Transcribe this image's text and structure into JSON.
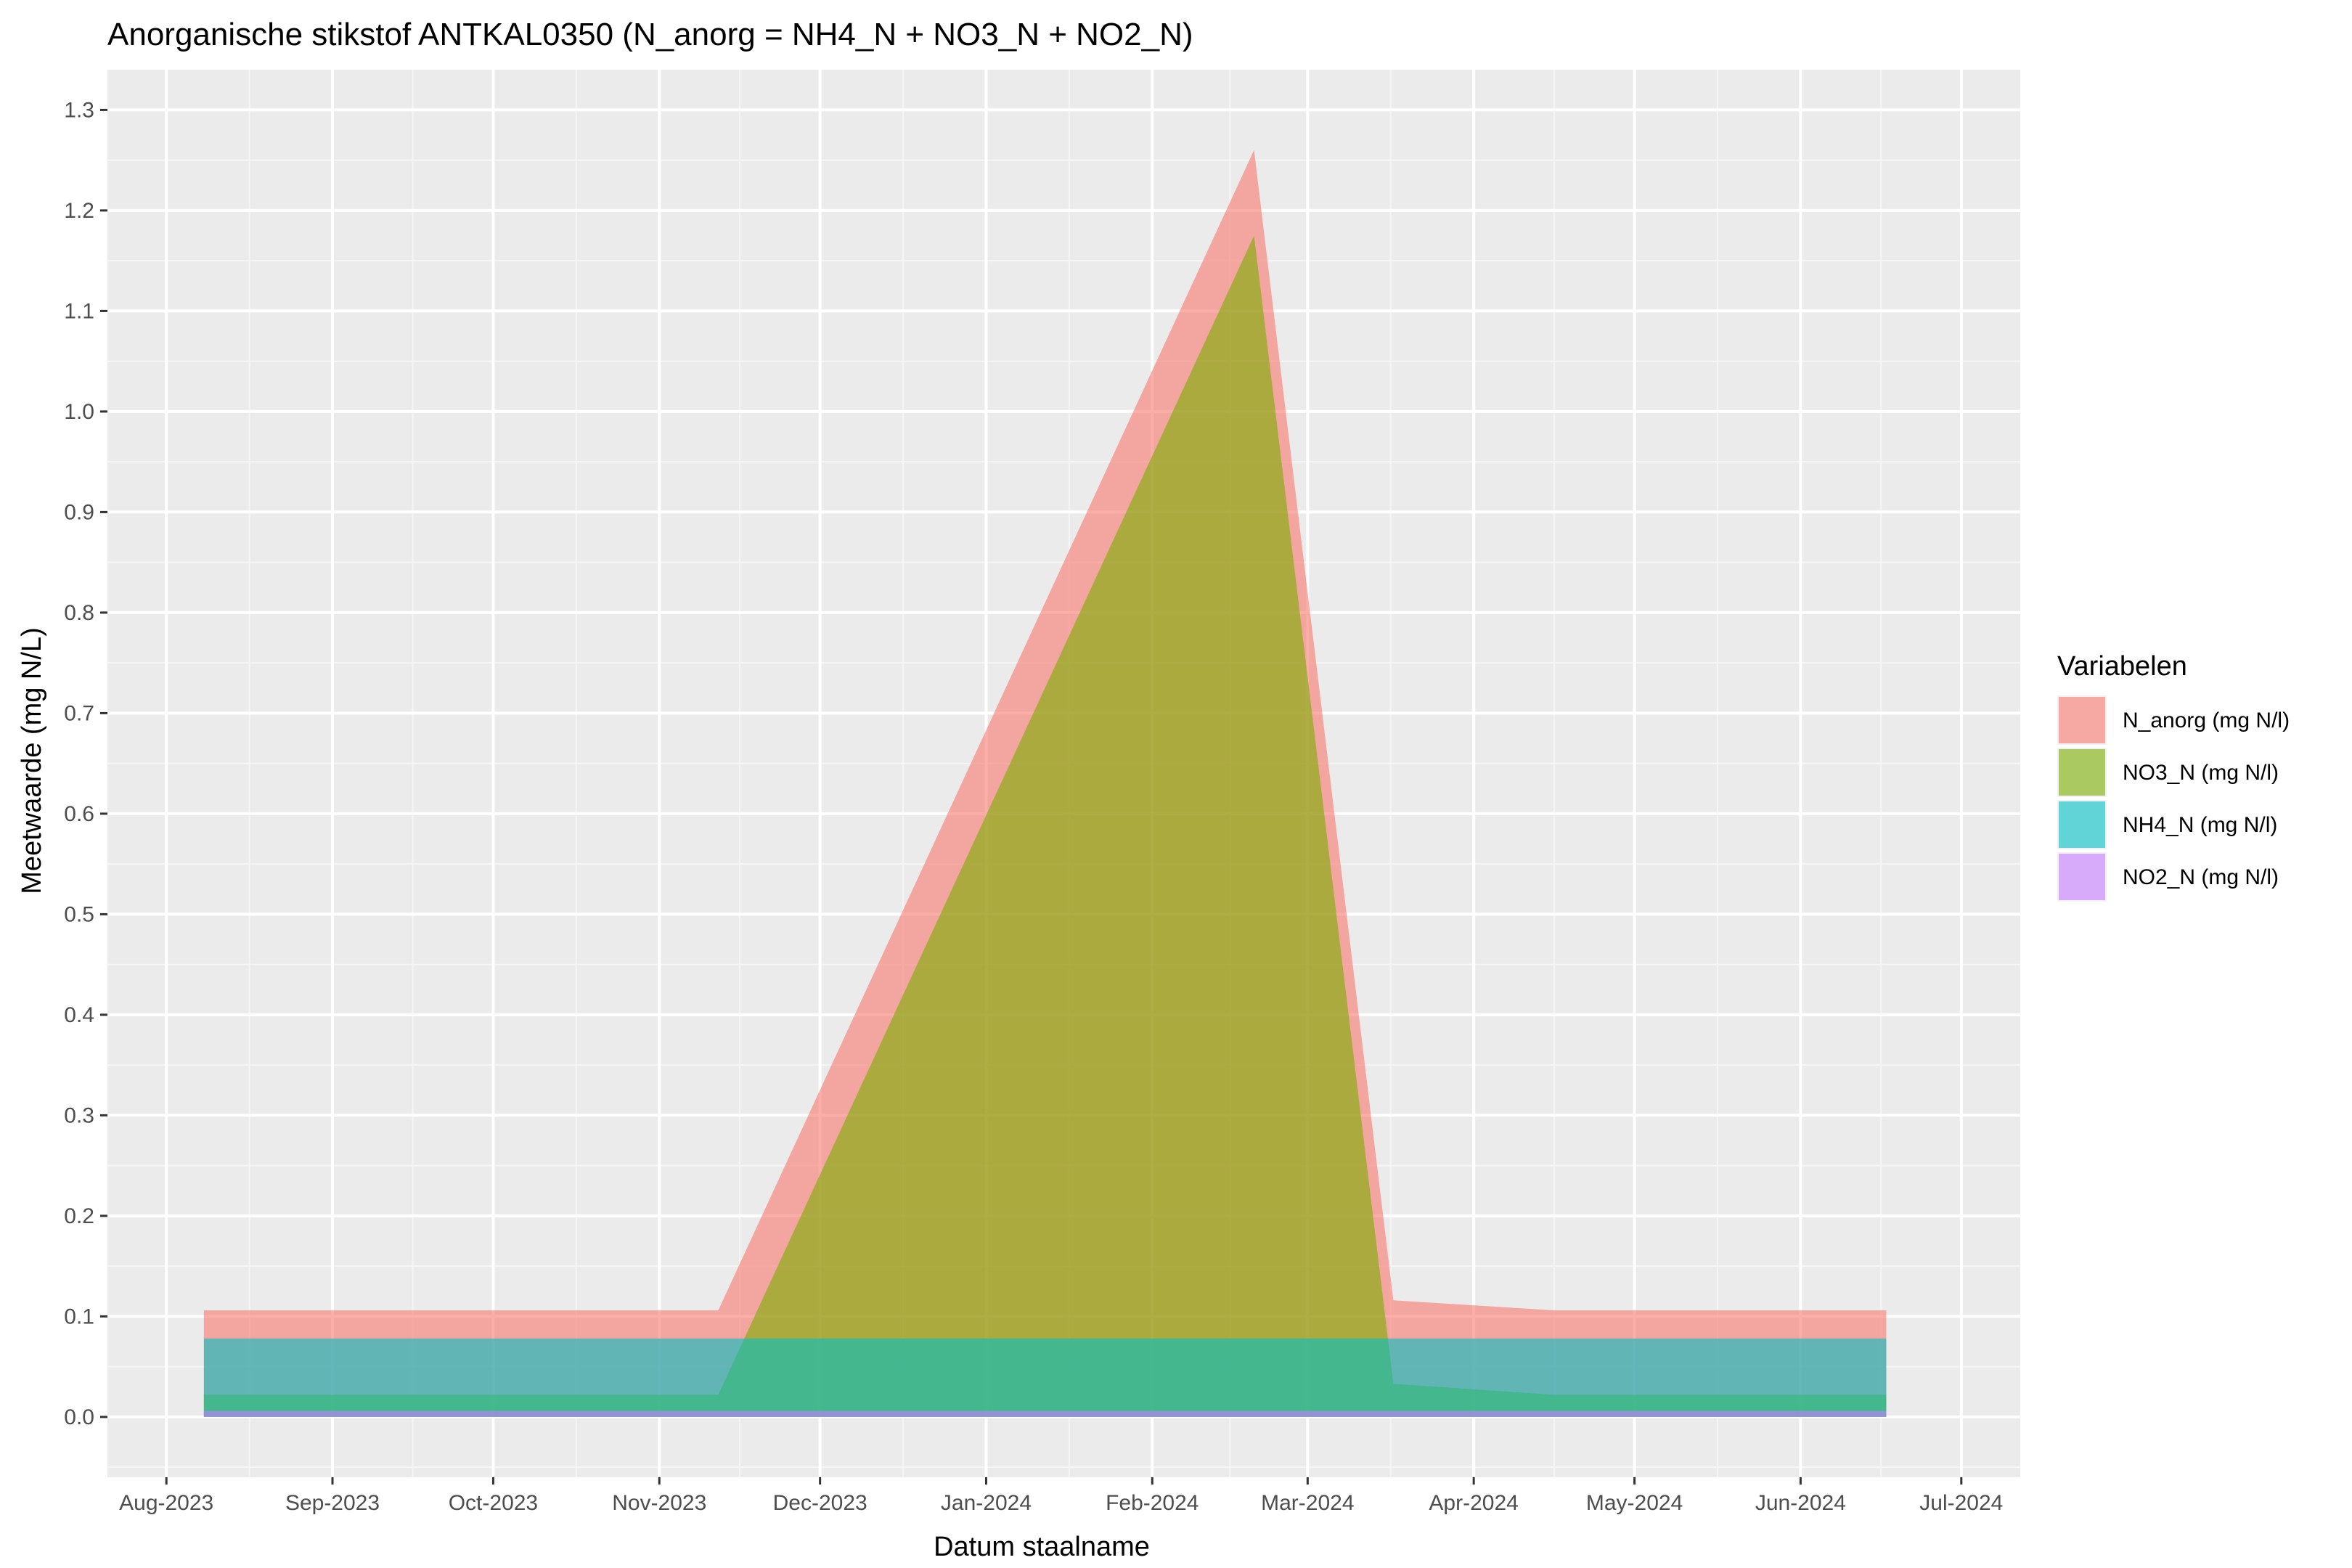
{
  "chart_data": {
    "type": "area",
    "title": "Anorganische stikstof ANTKAL0350 (N_anorg = NH4_N + NO3_N + NO2_N)",
    "xlabel": "Datum staalname",
    "ylabel": "Meetwaarde (mg N/L)",
    "legend_title": "Variabelen",
    "legend_position": "right",
    "grid": true,
    "xlim": [
      "2023-07-21",
      "2024-07-12"
    ],
    "ylim": [
      -0.06,
      1.34
    ],
    "x_ticks": [
      {
        "date": "2023-08-01",
        "label": "Aug-2023"
      },
      {
        "date": "2023-09-01",
        "label": "Sep-2023"
      },
      {
        "date": "2023-10-01",
        "label": "Oct-2023"
      },
      {
        "date": "2023-11-01",
        "label": "Nov-2023"
      },
      {
        "date": "2023-12-01",
        "label": "Dec-2023"
      },
      {
        "date": "2024-01-01",
        "label": "Jan-2024"
      },
      {
        "date": "2024-02-01",
        "label": "Feb-2024"
      },
      {
        "date": "2024-03-01",
        "label": "Mar-2024"
      },
      {
        "date": "2024-04-01",
        "label": "Apr-2024"
      },
      {
        "date": "2024-05-01",
        "label": "May-2024"
      },
      {
        "date": "2024-06-01",
        "label": "Jun-2024"
      },
      {
        "date": "2024-07-01",
        "label": "Jul-2024"
      }
    ],
    "y_ticks": [
      0.0,
      0.1,
      0.2,
      0.3,
      0.4,
      0.5,
      0.6,
      0.7,
      0.8,
      0.9,
      1.0,
      1.1,
      1.2,
      1.3
    ],
    "y_tick_labels": [
      "0.0",
      "0.1",
      "0.2",
      "0.3",
      "0.4",
      "0.5",
      "0.6",
      "0.7",
      "0.8",
      "0.9",
      "1.0",
      "1.1",
      "1.2",
      "1.3"
    ],
    "x": [
      "2023-08-08",
      "2023-11-06",
      "2023-11-12",
      "2024-02-20",
      "2024-03-17",
      "2024-04-16",
      "2024-06-17"
    ],
    "series": [
      {
        "name": "N_anorg (mg N/l)",
        "color": "#F8766D",
        "values": [
          0.106,
          0.106,
          0.106,
          1.26,
          0.116,
          0.106,
          0.106
        ]
      },
      {
        "name": "NO3_N (mg N/l)",
        "color": "#7CAE00",
        "values": [
          0.022,
          0.022,
          0.022,
          1.175,
          0.033,
          0.022,
          0.022
        ]
      },
      {
        "name": "NH4_N (mg N/l)",
        "color": "#00BFC4",
        "values": [
          0.078,
          0.078,
          0.078,
          0.078,
          0.078,
          0.078,
          0.078
        ]
      },
      {
        "name": "NO2_N (mg N/l)",
        "color": "#C77CFF",
        "values": [
          0.006,
          0.006,
          0.006,
          0.006,
          0.006,
          0.006,
          0.006
        ]
      }
    ],
    "fill_opacity": 0.6
  },
  "colors": {
    "panel_background": "#EBEBEB",
    "grid": "#FFFFFF"
  }
}
